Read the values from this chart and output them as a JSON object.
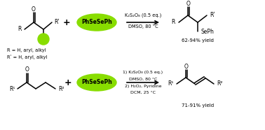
{
  "bg_color": "#ffffff",
  "green_fill": "#88dd00",
  "fig_width": 3.78,
  "fig_height": 1.86,
  "dpi": 100,
  "reaction1": {
    "cond1": "K₂S₂O₈ (0.5 eq.)",
    "cond2": "DMSO, 80 °C",
    "yield_text": "62-94% yield"
  },
  "reaction2": {
    "cond1": "1) K₂S₂O₈ (0.5 eq.)",
    "cond2": "DMSO, 80 °C",
    "cond3": "2) H₂O₂, Pyridine",
    "cond4": "DCM, 25 °C",
    "yield_text": "71-91% yield"
  },
  "sub1": "R = H, aryl, alkyl",
  "sub2": "Rʹ = H, aryl, alkyl"
}
